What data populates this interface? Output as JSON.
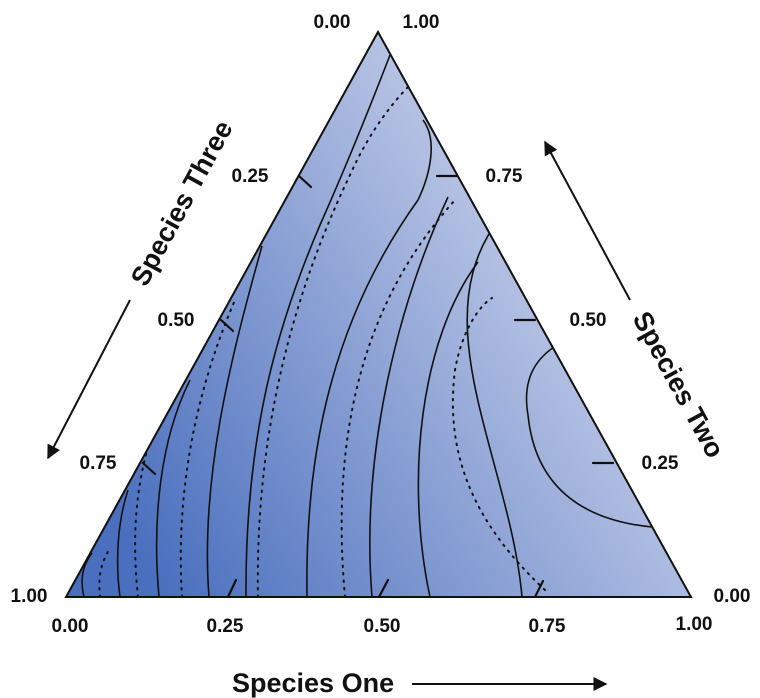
{
  "colors": {
    "fill_dark": "#4a6fbe",
    "fill_light": "#c9d1ea",
    "contour": "#111111"
  },
  "axes": {
    "one": {
      "title": "Species One",
      "ticks": [
        {
          "label": "0.00",
          "value": 0.0
        },
        {
          "label": "0.25",
          "value": 0.25
        },
        {
          "label": "0.50",
          "value": 0.5
        },
        {
          "label": "0.75",
          "value": 0.75
        },
        {
          "label": "1.00",
          "value": 1.0
        }
      ]
    },
    "two": {
      "title": "Species Two",
      "ticks": [
        {
          "label": "0.00",
          "value": 0.0
        },
        {
          "label": "0.25",
          "value": 0.25
        },
        {
          "label": "0.50",
          "value": 0.5
        },
        {
          "label": "0.75",
          "value": 0.75
        },
        {
          "label": "1.00",
          "value": 1.0
        }
      ]
    },
    "three": {
      "title": "Species Three",
      "ticks": [
        {
          "label": "0.00",
          "value": 0.0
        },
        {
          "label": "0.25",
          "value": 0.25
        },
        {
          "label": "0.50",
          "value": 0.5
        },
        {
          "label": "0.75",
          "value": 0.75
        },
        {
          "label": "1.00",
          "value": 1.0
        }
      ]
    }
  }
}
